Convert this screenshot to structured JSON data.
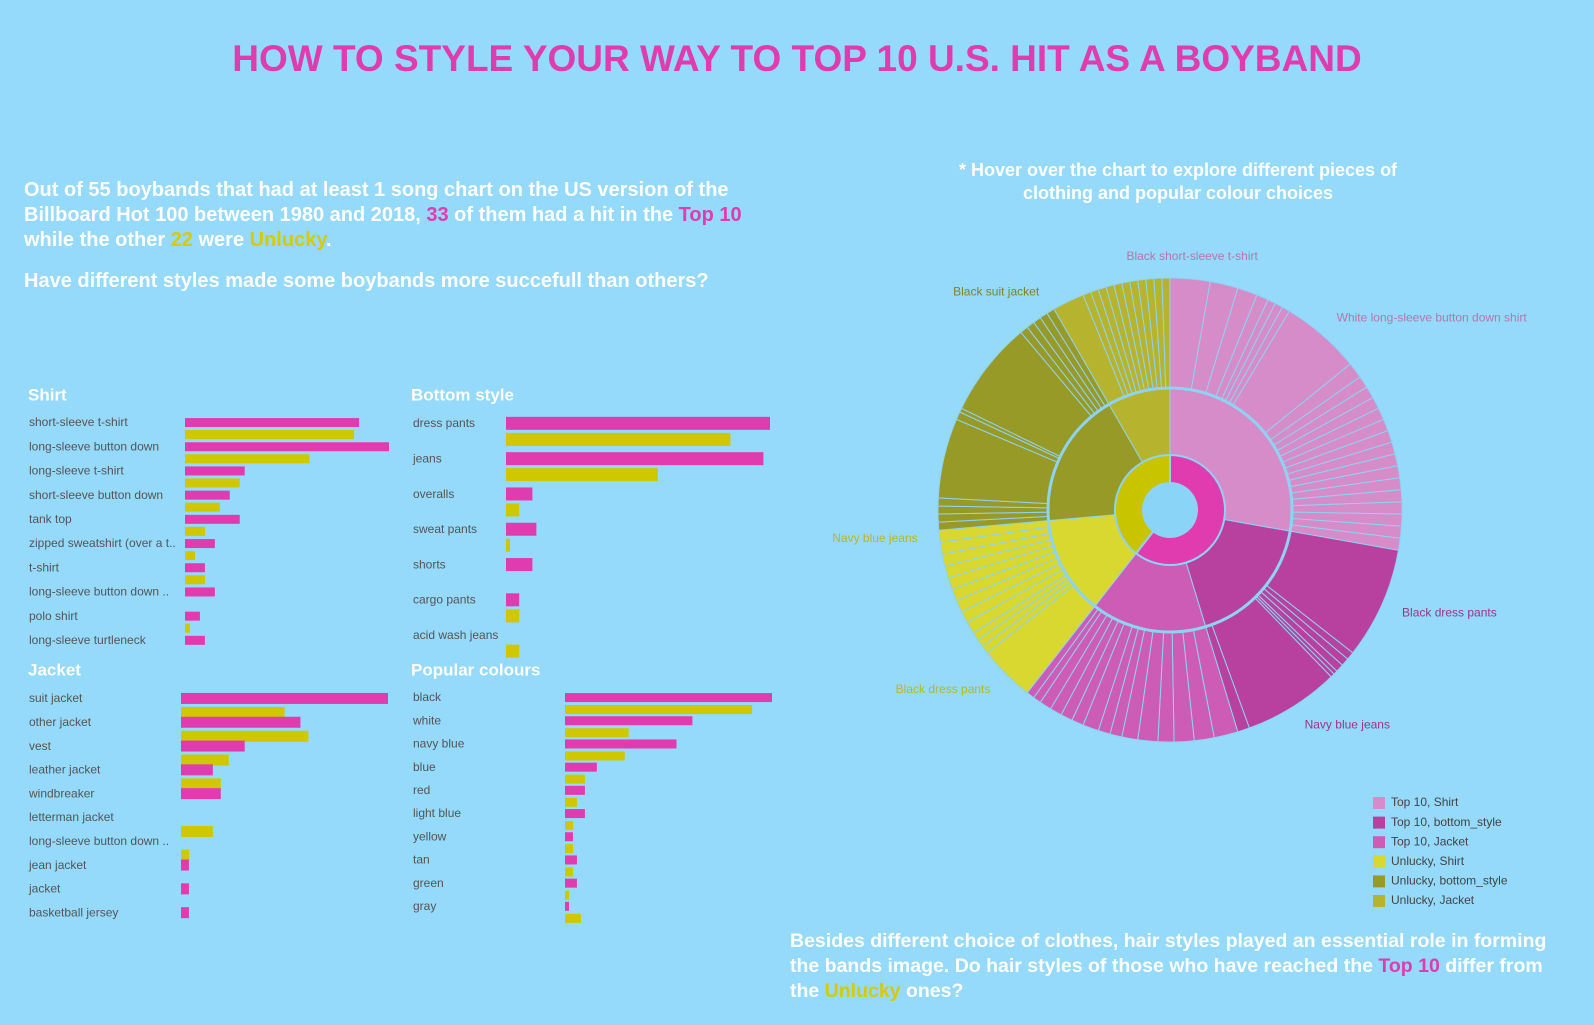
{
  "title": "HOW TO STYLE YOUR WAY TO TOP 10 U.S. HIT AS A BOYBAND",
  "intro": [
    "Out of 55 boybands that had at least 1 song chart on the US version of the Billboard Hot 100 between 1980 and 2018, ",
    "33",
    " of them had a hit in the ",
    "Top 10",
    " while the other ",
    "22",
    " were ",
    "Unlucky",
    "."
  ],
  "question": "Have different styles made some boybands more succefull than others?",
  "hover_note": "* Hover over the chart to explore different pieces of clothing and popular colour choices",
  "outro": [
    "Besides different choice of clothes, hair styles played an essential role in forming the bands image. Do hair styles of those who have reached the ",
    "Top 10",
    " differ from the ",
    "Unlucky",
    " ones?"
  ],
  "chart_data": [
    {
      "type": "bar",
      "title": "Shirt",
      "categories": [
        "short-sleeve t-shirt",
        "long-sleeve button down",
        "long-sleeve t-shirt",
        "short-sleeve button down",
        "tank top",
        "zipped sweatshirt (over a t..",
        "t-shirt",
        "long-sleeve button down ..",
        "polo shirt",
        "long-sleeve turtleneck"
      ],
      "series": [
        {
          "color": "#e03cb0",
          "values": [
            35,
            41,
            12,
            9,
            11,
            6,
            4,
            6,
            3,
            4
          ]
        },
        {
          "color": "#cfc800",
          "values": [
            34,
            25,
            11,
            7,
            4,
            2,
            4,
            null,
            1,
            null
          ]
        }
      ]
    },
    {
      "type": "bar",
      "title": "Bottom style",
      "categories": [
        "dress pants",
        "jeans",
        "overalls",
        "sweat pants",
        "shorts",
        "cargo pants",
        "acid wash jeans"
      ],
      "series": [
        {
          "color": "#e03cb0",
          "values": [
            20,
            19.5,
            2,
            2.3,
            2,
            1,
            null
          ]
        },
        {
          "color": "#cfc800",
          "values": [
            17,
            11.5,
            1,
            0.3,
            null,
            1,
            1
          ]
        }
      ]
    },
    {
      "type": "bar",
      "title": "Jacket",
      "categories": [
        "suit jacket",
        "other jacket",
        "vest",
        "leather jacket",
        "windbreaker",
        "letterman jacket",
        "long-sleeve button down ..",
        "jean jacket",
        "jacket",
        "basketball jersey"
      ],
      "series": [
        {
          "color": "#e03cb0",
          "values": [
            26,
            15,
            8,
            4,
            5,
            null,
            null,
            1,
            1,
            1
          ]
        },
        {
          "color": "#cfc800",
          "values": [
            13,
            16,
            6,
            5,
            null,
            4,
            1,
            null,
            null,
            null
          ]
        }
      ]
    },
    {
      "type": "bar",
      "title": "Popular colours",
      "categories": [
        "black",
        "white",
        "navy blue",
        "blue",
        "red",
        "light blue",
        "yellow",
        "tan",
        "green",
        "gray"
      ],
      "series": [
        {
          "color": "#e03cb0",
          "values": [
            52,
            32,
            28,
            8,
            5,
            5,
            2,
            3,
            3,
            1
          ]
        },
        {
          "color": "#cfc800",
          "values": [
            47,
            16,
            15,
            5,
            3,
            2,
            2,
            2,
            1,
            4
          ]
        }
      ]
    },
    {
      "type": "sunburst",
      "groups": [
        {
          "color": "#e03cb0",
          "segments": [
            {
              "name": "Top 10, Shirt",
              "color": "#d68cc8",
              "slices": [
                10,
                7,
                5,
                3,
                2,
                2,
                2,
                20,
                4,
                3,
                3,
                3,
                3,
                3,
                3,
                3,
                3,
                3,
                3,
                3,
                3,
                3,
                3,
                3
              ],
              "slice_labels": [
                "Black short-sleeve t-shirt",
                null,
                null,
                null,
                null,
                null,
                null,
                "White long-sleeve button down shirt",
                null,
                null,
                null,
                null,
                null,
                null,
                null,
                null,
                null,
                null,
                null,
                null,
                null,
                null,
                null,
                null
              ]
            },
            {
              "name": "Top 10, bottom_style",
              "color": "#b8409e",
              "slices": [
                28,
                2,
                2,
                2,
                1,
                1,
                24,
                3
              ],
              "slice_labels": [
                "Black dress pants",
                null,
                null,
                null,
                null,
                null,
                "Navy blue jeans",
                null
              ]
            },
            {
              "name": "Top 10, Jacket",
              "color": "#cc5cb6",
              "slices": [
                6,
                5,
                5,
                4,
                5,
                4,
                3,
                3,
                4,
                3,
                3,
                3,
                3,
                2,
                2
              ],
              "slice_labels": [
                null,
                null,
                null,
                null,
                null,
                null,
                null,
                null,
                null,
                null,
                null,
                null,
                null,
                null,
                null
              ]
            }
          ]
        },
        {
          "color": "#c8c400",
          "segments": [
            {
              "name": "Unlucky, Shirt",
              "color": "#d8d830",
              "slices": [
                14,
                2,
                2,
                2,
                3,
                3,
                3,
                3,
                3,
                3,
                3,
                3,
                3
              ],
              "slice_labels": [
                "Black dress pants",
                null,
                null,
                null,
                null,
                null,
                null,
                null,
                null,
                null,
                null,
                null,
                "Navy blue jeans"
              ]
            },
            {
              "name": "Unlucky, bottom_style",
              "color": "#989a28",
              "slices": [
                2,
                2,
                2,
                2,
                20,
                2,
                1,
                24,
                2,
                2,
                2,
                2,
                2
              ],
              "slice_labels": [
                null,
                null,
                null,
                null,
                null,
                null,
                null,
                null,
                null,
                null,
                null,
                null,
                "Black suit jacket"
              ]
            },
            {
              "name": "Unlucky, Jacket",
              "color": "#b6b42e",
              "slices": [
                8,
                2,
                2,
                2,
                2,
                2,
                2,
                2,
                2,
                2,
                2,
                2
              ],
              "slice_labels": [
                null,
                null,
                null,
                null,
                null,
                null,
                null,
                null,
                null,
                null,
                null,
                null
              ]
            }
          ]
        }
      ]
    }
  ]
}
